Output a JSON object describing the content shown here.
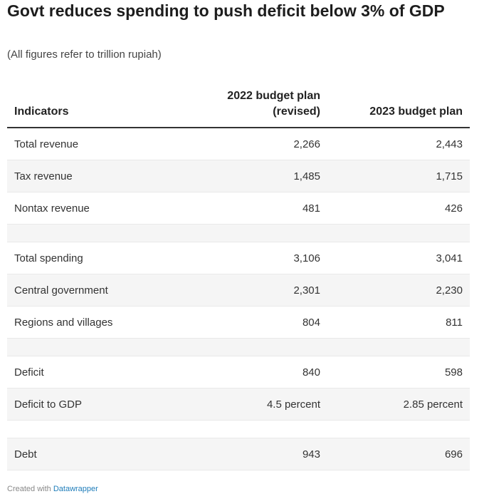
{
  "title": "Govt reduces spending to push deficit below 3% of GDP",
  "subtitle": "(All figures refer to trillion rupiah)",
  "footer": {
    "prefix": "Created with",
    "link": "Datawrapper"
  },
  "chart_data": {
    "type": "table",
    "columns": [
      "Indicators",
      "2022 budget plan (revised)",
      "2023 budget plan"
    ],
    "rows": [
      {
        "indicator": "Total revenue",
        "plan_2022": "2,266",
        "plan_2023": "2,443"
      },
      {
        "indicator": "Tax revenue",
        "plan_2022": "1,485",
        "plan_2023": "1,715"
      },
      {
        "indicator": "Nontax revenue",
        "plan_2022": "481",
        "plan_2023": "426"
      },
      {
        "indicator": "",
        "plan_2022": "",
        "plan_2023": ""
      },
      {
        "indicator": "Total spending",
        "plan_2022": "3,106",
        "plan_2023": "3,041"
      },
      {
        "indicator": "Central government",
        "plan_2022": "2,301",
        "plan_2023": "2,230"
      },
      {
        "indicator": "Regions and villages",
        "plan_2022": "804",
        "plan_2023": "811"
      },
      {
        "indicator": "",
        "plan_2022": "",
        "plan_2023": ""
      },
      {
        "indicator": "Deficit",
        "plan_2022": "840",
        "plan_2023": "598"
      },
      {
        "indicator": "Deficit to GDP",
        "plan_2022": "4.5 percent",
        "plan_2023": "2.85 percent"
      },
      {
        "indicator": "",
        "plan_2022": "",
        "plan_2023": ""
      },
      {
        "indicator": "Debt",
        "plan_2022": "943",
        "plan_2023": "696"
      }
    ]
  },
  "colors": {
    "stripe": "#f5f5f5",
    "header_rule": "#333333",
    "link": "#1f7dba"
  }
}
